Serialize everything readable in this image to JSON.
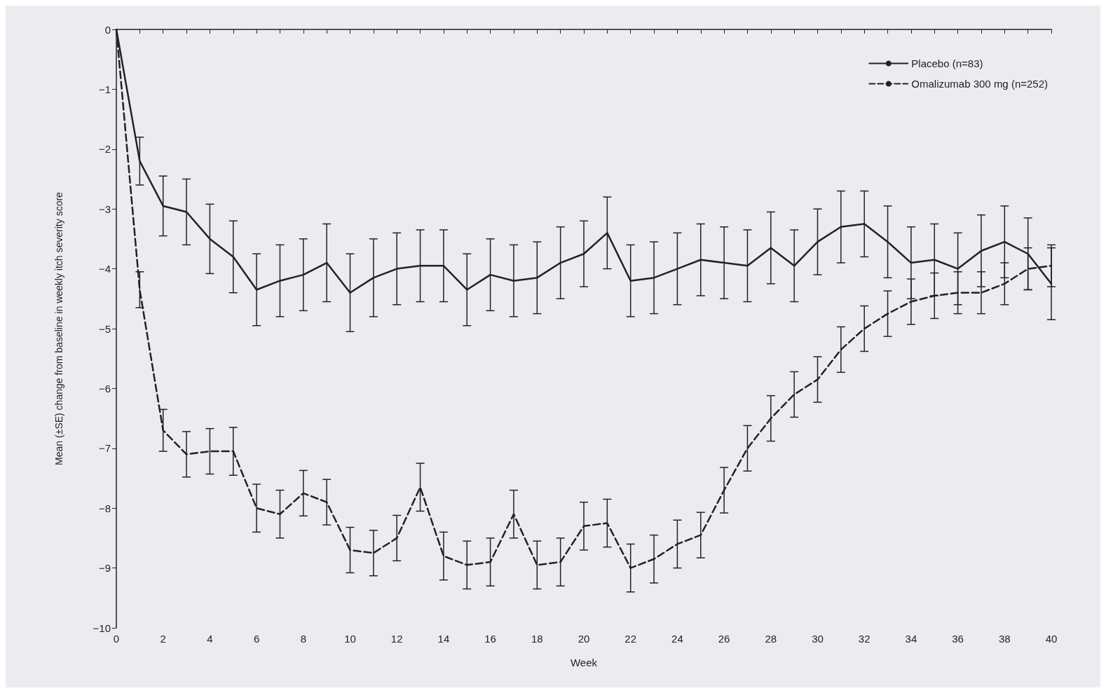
{
  "chart_data": {
    "type": "line",
    "xlabel": "Week",
    "ylabel": "Mean (±SE) change from baseline in weekly itch severity score",
    "x": [
      0,
      1,
      2,
      3,
      4,
      5,
      6,
      7,
      8,
      9,
      10,
      11,
      12,
      13,
      14,
      15,
      16,
      17,
      18,
      19,
      20,
      21,
      22,
      23,
      24,
      25,
      26,
      27,
      28,
      29,
      30,
      31,
      32,
      33,
      34,
      35,
      36,
      37,
      38,
      39,
      40
    ],
    "series": [
      {
        "name": "Placebo (n=83)",
        "color": "#222222",
        "line_style": "solid",
        "values": [
          0,
          -2.2,
          -2.95,
          -3.05,
          -3.5,
          -3.8,
          -4.35,
          -4.2,
          -4.1,
          -3.9,
          -4.4,
          -4.15,
          -4.0,
          -3.95,
          -3.95,
          -4.35,
          -4.1,
          -4.2,
          -4.15,
          -3.9,
          -3.75,
          -3.4,
          -4.2,
          -4.15,
          -4.0,
          -3.85,
          -3.9,
          -3.95,
          -3.65,
          -3.95,
          -3.55,
          -3.3,
          -3.25,
          -3.55,
          -3.9,
          -3.85,
          -4.0,
          -3.7,
          -3.55,
          -3.75,
          -4.25
        ],
        "errors": [
          null,
          0.4,
          0.5,
          0.55,
          0.58,
          0.6,
          0.6,
          0.6,
          0.6,
          0.65,
          0.65,
          0.65,
          0.6,
          0.6,
          0.6,
          0.6,
          0.6,
          0.6,
          0.6,
          0.6,
          0.55,
          0.6,
          0.6,
          0.6,
          0.6,
          0.6,
          0.6,
          0.6,
          0.6,
          0.6,
          0.55,
          0.6,
          0.55,
          0.6,
          0.6,
          0.6,
          0.6,
          0.6,
          0.6,
          0.6,
          0.6
        ]
      },
      {
        "name": "Omalizumab 300 mg (n=252)",
        "color": "#222222",
        "line_style": "dashed",
        "values": [
          0,
          -4.35,
          -6.7,
          -7.1,
          -7.05,
          -7.05,
          -8.0,
          -8.1,
          -7.75,
          -7.9,
          -8.7,
          -8.75,
          -8.5,
          -7.65,
          -8.8,
          -8.95,
          -8.9,
          -8.1,
          -8.95,
          -8.9,
          -8.3,
          -8.25,
          -9.0,
          -8.85,
          -8.6,
          -8.45,
          -7.7,
          -7.0,
          -6.5,
          -6.1,
          -5.85,
          -5.35,
          -5.0,
          -4.75,
          -4.55,
          -4.45,
          -4.4,
          -4.4,
          -4.25,
          -4.0,
          -3.95
        ],
        "errors": [
          null,
          0.3,
          0.35,
          0.38,
          0.38,
          0.4,
          0.4,
          0.4,
          0.38,
          0.38,
          0.38,
          0.38,
          0.38,
          0.4,
          0.4,
          0.4,
          0.4,
          0.4,
          0.4,
          0.4,
          0.4,
          0.4,
          0.4,
          0.4,
          0.4,
          0.38,
          0.38,
          0.38,
          0.38,
          0.38,
          0.38,
          0.38,
          0.38,
          0.38,
          0.38,
          0.38,
          0.35,
          0.35,
          0.35,
          0.35,
          0.35
        ]
      }
    ],
    "xlim": [
      0,
      40
    ],
    "xticks": [
      0,
      {
        "value": 1,
        "label": null
      },
      2,
      {
        "value": 3,
        "label": null
      },
      4,
      {
        "value": 5,
        "label": null
      },
      6,
      {
        "value": 7,
        "label": null
      },
      8,
      {
        "value": 9,
        "label": null
      },
      10,
      {
        "value": 11,
        "label": null
      },
      12,
      {
        "value": 13,
        "label": null
      },
      14,
      {
        "value": 15,
        "label": null
      },
      16,
      {
        "value": 17,
        "label": null
      },
      18,
      {
        "value": 19,
        "label": null
      },
      20,
      {
        "value": 21,
        "label": null
      },
      22,
      {
        "value": 23,
        "label": null
      },
      24,
      {
        "value": 25,
        "label": null
      },
      26,
      {
        "value": 27,
        "label": null
      },
      28,
      {
        "value": 29,
        "label": null
      },
      30,
      {
        "value": 31,
        "label": null
      },
      32,
      {
        "value": 33,
        "label": null
      },
      34,
      {
        "value": 35,
        "label": null
      },
      36,
      {
        "value": 37,
        "label": null
      },
      38,
      {
        "value": 39,
        "label": null
      },
      40
    ],
    "ylim": [
      -10,
      0
    ],
    "yticks": [
      -10,
      -9,
      -8,
      -7,
      -6,
      -5,
      -4,
      -3,
      -2,
      -1,
      0
    ],
    "grid": false,
    "legend": "top right",
    "marker": "none"
  }
}
